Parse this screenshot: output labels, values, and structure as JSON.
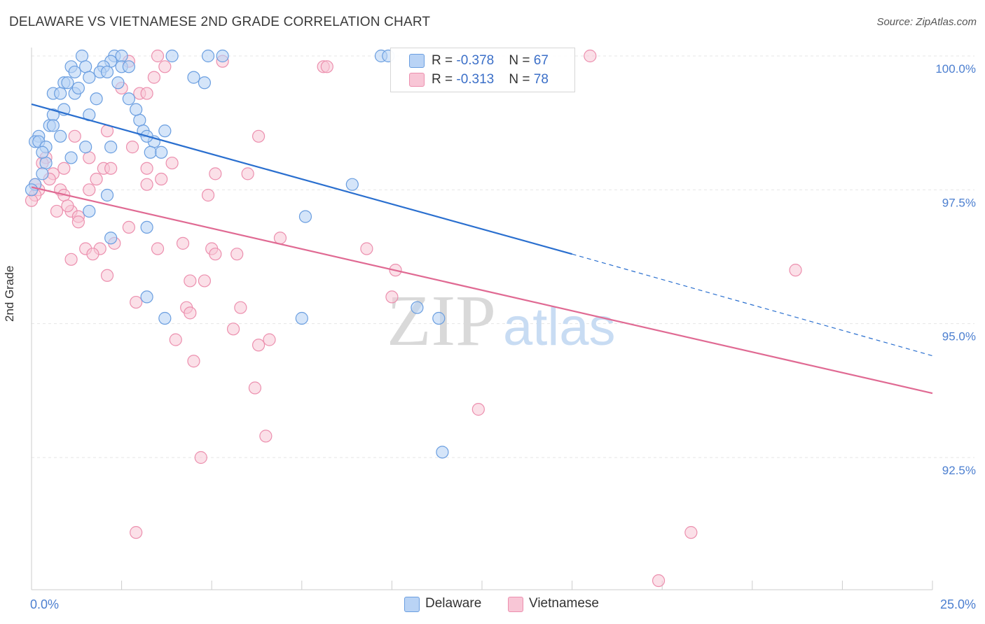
{
  "title": "DELAWARE VS VIETNAMESE 2ND GRADE CORRELATION CHART",
  "source": "Source: ZipAtlas.com",
  "colors": {
    "delaware_fill": "#b9d3f5",
    "delaware_stroke": "#6a9ee0",
    "delaware_line": "#2a6fcf",
    "vietnamese_fill": "#f8c6d6",
    "vietnamese_stroke": "#ec8fae",
    "vietnamese_line": "#e06a93",
    "tick_label": "#4c7fd0",
    "grid": "#e6e6e6"
  },
  "legend": {
    "delaware": {
      "r_label": "R = ",
      "r_value": "-0.378",
      "n_label": "N = ",
      "n_value": "67"
    },
    "vietnamese": {
      "r_label": "R = ",
      "r_value": "-0.313",
      "n_label": "N = ",
      "n_value": "78"
    }
  },
  "chart_data": {
    "type": "scatter",
    "title": "DELAWARE VS VIETNAMESE 2ND GRADE CORRELATION CHART",
    "xlabel": "",
    "ylabel": "2nd Grade",
    "xlim": [
      0,
      25
    ],
    "ylim": [
      90.0,
      100.0
    ],
    "x_tick_labels": [
      "0.0%",
      "25.0%"
    ],
    "y_ticks": [
      92.5,
      95.0,
      97.5,
      100.0
    ],
    "y_tick_labels": [
      "92.5%",
      "95.0%",
      "97.5%",
      "100.0%"
    ],
    "grid": true,
    "legend_position": "top-center",
    "watermark": {
      "zip": "ZIP",
      "atlas": "atlas"
    },
    "series": [
      {
        "name": "Delaware",
        "r": -0.378,
        "n": 67,
        "trend": {
          "x0": 0.0,
          "y0": 99.1,
          "x1": 15.0,
          "y1": 96.3,
          "dash_to_x": 25.0,
          "dash_to_y": 94.4
        },
        "points": [
          [
            1.4,
            100.0
          ],
          [
            2.3,
            100.0
          ],
          [
            2.5,
            100.0
          ],
          [
            3.9,
            100.0
          ],
          [
            4.9,
            100.0
          ],
          [
            5.3,
            100.0
          ],
          [
            9.7,
            100.0
          ],
          [
            9.9,
            100.0
          ],
          [
            2.2,
            99.9
          ],
          [
            1.1,
            99.8
          ],
          [
            1.5,
            99.8
          ],
          [
            2.0,
            99.8
          ],
          [
            2.5,
            99.8
          ],
          [
            2.7,
            99.8
          ],
          [
            1.2,
            99.7
          ],
          [
            1.9,
            99.7
          ],
          [
            2.1,
            99.7
          ],
          [
            4.5,
            99.6
          ],
          [
            0.9,
            99.5
          ],
          [
            1.0,
            99.5
          ],
          [
            2.4,
            99.5
          ],
          [
            4.8,
            99.5
          ],
          [
            0.6,
            99.3
          ],
          [
            0.8,
            99.3
          ],
          [
            1.2,
            99.3
          ],
          [
            1.8,
            99.2
          ],
          [
            2.7,
            99.2
          ],
          [
            0.9,
            99.0
          ],
          [
            0.6,
            98.9
          ],
          [
            1.6,
            98.9
          ],
          [
            3.0,
            98.8
          ],
          [
            0.5,
            98.7
          ],
          [
            0.6,
            98.7
          ],
          [
            3.1,
            98.6
          ],
          [
            3.7,
            98.6
          ],
          [
            0.2,
            98.5
          ],
          [
            0.8,
            98.5
          ],
          [
            0.1,
            98.4
          ],
          [
            0.2,
            98.4
          ],
          [
            3.4,
            98.4
          ],
          [
            0.4,
            98.3
          ],
          [
            1.5,
            98.3
          ],
          [
            2.2,
            98.3
          ],
          [
            3.3,
            98.2
          ],
          [
            3.6,
            98.2
          ],
          [
            1.1,
            98.1
          ],
          [
            0.4,
            98.0
          ],
          [
            0.3,
            97.8
          ],
          [
            0.1,
            97.6
          ],
          [
            0.0,
            97.5
          ],
          [
            8.9,
            97.6
          ],
          [
            2.1,
            97.4
          ],
          [
            1.6,
            97.1
          ],
          [
            7.6,
            97.0
          ],
          [
            3.2,
            96.8
          ],
          [
            2.2,
            96.6
          ],
          [
            3.2,
            95.5
          ],
          [
            10.7,
            95.3
          ],
          [
            3.7,
            95.1
          ],
          [
            7.5,
            95.1
          ],
          [
            11.3,
            95.1
          ],
          [
            11.4,
            92.6
          ],
          [
            1.6,
            99.6
          ],
          [
            3.2,
            98.5
          ],
          [
            1.3,
            99.4
          ],
          [
            0.3,
            98.2
          ],
          [
            2.9,
            99.0
          ]
        ]
      },
      {
        "name": "Vietnamese",
        "r": -0.313,
        "n": 78,
        "trend": {
          "x0": 0.0,
          "y0": 97.55,
          "x1": 25.0,
          "y1": 93.7
        },
        "points": [
          [
            3.5,
            100.0
          ],
          [
            15.5,
            100.0
          ],
          [
            5.3,
            99.9
          ],
          [
            2.7,
            99.9
          ],
          [
            3.7,
            99.8
          ],
          [
            8.1,
            99.8
          ],
          [
            8.2,
            99.8
          ],
          [
            3.4,
            99.6
          ],
          [
            2.5,
            99.4
          ],
          [
            3.0,
            99.3
          ],
          [
            3.2,
            99.3
          ],
          [
            2.1,
            98.6
          ],
          [
            1.2,
            98.5
          ],
          [
            6.3,
            98.5
          ],
          [
            2.8,
            98.3
          ],
          [
            1.6,
            98.1
          ],
          [
            0.4,
            98.1
          ],
          [
            3.9,
            98.0
          ],
          [
            0.3,
            98.0
          ],
          [
            0.9,
            97.9
          ],
          [
            2.0,
            97.9
          ],
          [
            2.2,
            97.9
          ],
          [
            3.2,
            97.9
          ],
          [
            0.6,
            97.8
          ],
          [
            5.1,
            97.8
          ],
          [
            6.0,
            97.8
          ],
          [
            0.5,
            97.7
          ],
          [
            1.8,
            97.7
          ],
          [
            3.6,
            97.7
          ],
          [
            0.1,
            97.6
          ],
          [
            3.2,
            97.6
          ],
          [
            0.8,
            97.5
          ],
          [
            1.6,
            97.5
          ],
          [
            0.2,
            97.5
          ],
          [
            0.9,
            97.4
          ],
          [
            4.9,
            97.4
          ],
          [
            0.1,
            97.4
          ],
          [
            0.7,
            97.1
          ],
          [
            1.1,
            97.1
          ],
          [
            1.3,
            97.0
          ],
          [
            1.3,
            96.9
          ],
          [
            2.7,
            96.8
          ],
          [
            4.2,
            96.5
          ],
          [
            6.9,
            96.6
          ],
          [
            1.5,
            96.4
          ],
          [
            1.9,
            96.4
          ],
          [
            2.3,
            96.5
          ],
          [
            3.5,
            96.4
          ],
          [
            5.0,
            96.4
          ],
          [
            9.3,
            96.4
          ],
          [
            1.7,
            96.3
          ],
          [
            5.1,
            96.3
          ],
          [
            5.7,
            96.3
          ],
          [
            1.1,
            96.2
          ],
          [
            10.1,
            96.0
          ],
          [
            21.2,
            96.0
          ],
          [
            2.1,
            95.9
          ],
          [
            4.4,
            95.8
          ],
          [
            4.8,
            95.8
          ],
          [
            10.0,
            95.5
          ],
          [
            2.9,
            95.4
          ],
          [
            4.3,
            95.3
          ],
          [
            5.8,
            95.3
          ],
          [
            4.4,
            95.2
          ],
          [
            5.6,
            94.9
          ],
          [
            4.0,
            94.7
          ],
          [
            6.3,
            94.6
          ],
          [
            6.6,
            94.7
          ],
          [
            4.5,
            94.3
          ],
          [
            6.2,
            93.8
          ],
          [
            12.4,
            93.4
          ],
          [
            6.5,
            92.9
          ],
          [
            4.7,
            92.5
          ],
          [
            2.9,
            91.1
          ],
          [
            18.3,
            91.1
          ],
          [
            17.4,
            90.2
          ],
          [
            0.0,
            97.3
          ],
          [
            1.0,
            97.2
          ]
        ]
      }
    ]
  },
  "bottom_legend": {
    "delaware": "Delaware",
    "vietnamese": "Vietnamese"
  }
}
